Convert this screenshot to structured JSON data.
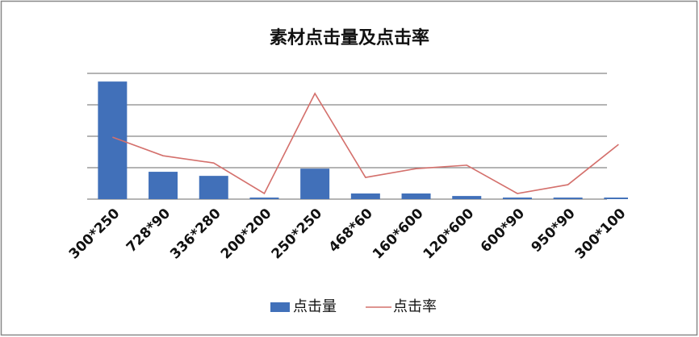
{
  "chart_data": {
    "type": "bar_line",
    "title": "素材点击量及点击率",
    "categories": [
      "300*250",
      "728*90",
      "336*280",
      "200*200",
      "250*250",
      "468*60",
      "160*600",
      "120*600",
      "600*90",
      "950*90",
      "300*100"
    ],
    "series": [
      {
        "name": "点击量",
        "type": "bar",
        "color": "#4170b9",
        "values": [
          3.74,
          0.87,
          0.74,
          0.05,
          0.97,
          0.18,
          0.18,
          0.1,
          0.05,
          0.05,
          0.05
        ]
      },
      {
        "name": "点击率",
        "type": "line",
        "color": "#d4706c",
        "values": [
          1.97,
          1.38,
          1.15,
          0.18,
          3.36,
          0.69,
          0.97,
          1.08,
          0.18,
          0.46,
          1.74
        ]
      }
    ],
    "ylim": [
      0,
      4
    ],
    "yticks": [
      0,
      1,
      2,
      3,
      4
    ],
    "ytick_labels": false,
    "grid": true,
    "legend": "bottom"
  }
}
